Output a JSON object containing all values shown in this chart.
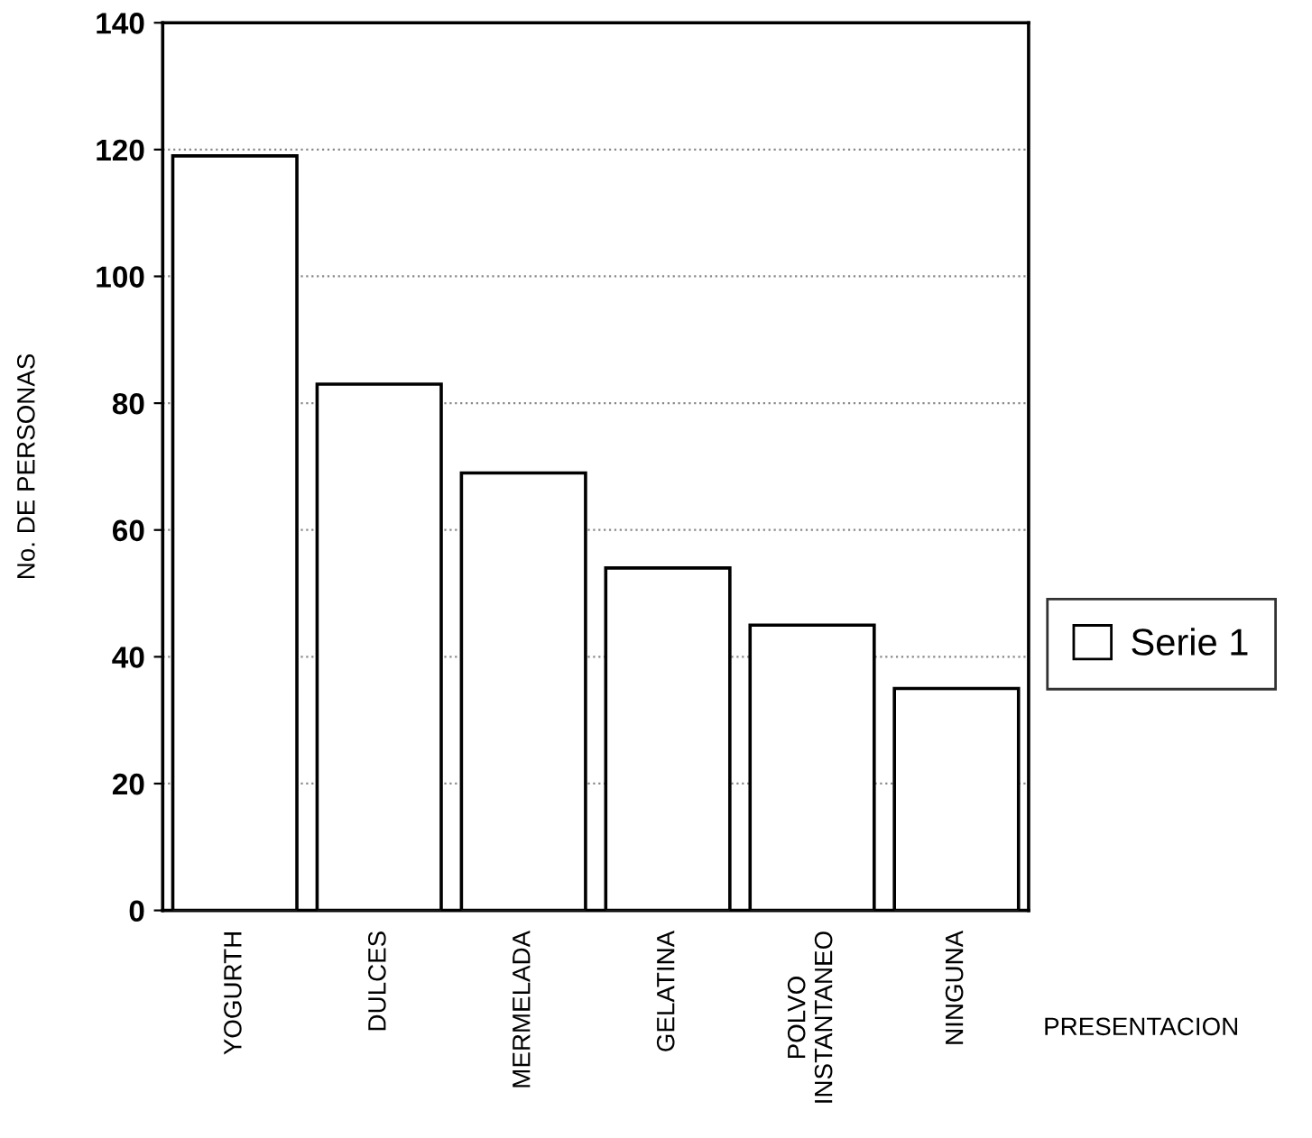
{
  "chart_data": {
    "type": "bar",
    "xlabel": "PRESENTACION",
    "ylabel": "No. DE PERSONAS",
    "categories": [
      "YOGURTH",
      "DULCES",
      "MERMELADA",
      "GELATINA",
      "POLVO\nINSTANTANEO",
      "NINGUNA"
    ],
    "series": [
      {
        "name": "Serie 1",
        "color": "#ffffff",
        "values": [
          119,
          83,
          69,
          54,
          45,
          35
        ]
      }
    ],
    "ylim": [
      0,
      140
    ],
    "yticks": [
      0,
      20,
      40,
      60,
      80,
      100,
      120,
      140
    ],
    "grid": "y",
    "legend": "right"
  }
}
